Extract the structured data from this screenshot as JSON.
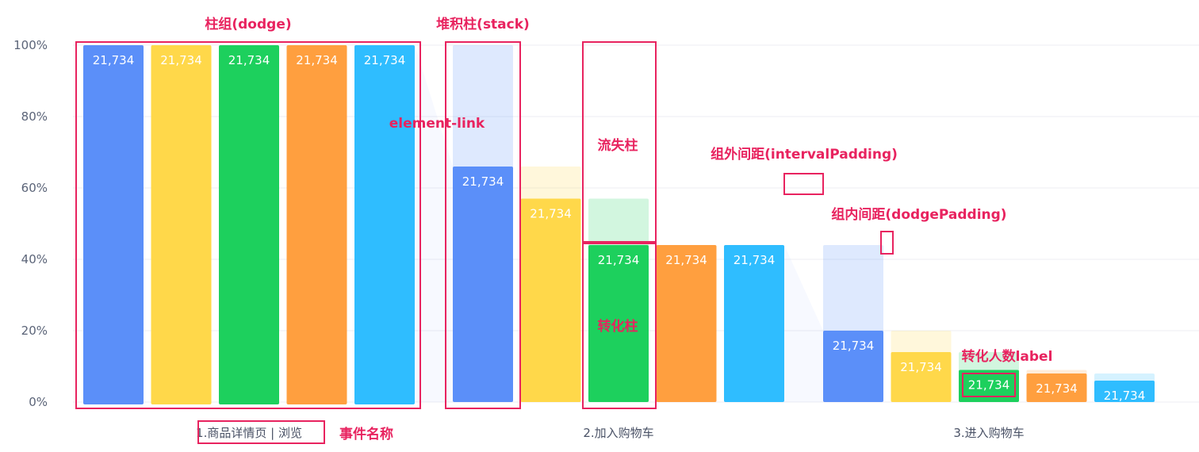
{
  "chart_data": {
    "type": "bar",
    "categories": [
      "1.商品详情页 | 浏览",
      "2.加入购物车",
      "3.进入购物车"
    ],
    "y_ticks": [
      "0%",
      "20%",
      "40%",
      "60%",
      "80%",
      "100%"
    ],
    "ylim": [
      0,
      100
    ],
    "grid": true,
    "series": [
      {
        "color": "#5b8ff9",
        "values": [
          100,
          66,
          20
        ],
        "labels": [
          "21,734",
          "21,734",
          "21,734"
        ]
      },
      {
        "color": "#ffd84a",
        "values": [
          100,
          57,
          14
        ],
        "labels": [
          "21,734",
          "21,734",
          "21,734"
        ]
      },
      {
        "color": "#1dd05d",
        "values": [
          100,
          44,
          9
        ],
        "labels": [
          "21,734",
          "21,734",
          "21,734"
        ]
      },
      {
        "color": "#ff9f3f",
        "values": [
          100,
          44,
          8
        ],
        "labels": [
          "21,734",
          "21,734",
          "21,734"
        ]
      },
      {
        "color": "#2fbdff",
        "values": [
          100,
          44,
          6
        ],
        "labels": [
          "21,734",
          "21,734",
          "21,734"
        ]
      }
    ],
    "annotations": {
      "dodge": "柱组(dodge)",
      "stack": "堆积柱(stack)",
      "element_link": "element-link",
      "loss_bar": "流失柱",
      "conversion_bar": "转化柱",
      "interval_padding": "组外间距(intervalPadding)",
      "dodge_padding": "组内间距(dodgePadding)",
      "conversion_label": "转化人数label",
      "event_name": "事件名称"
    },
    "annotation_color": "#e8235f"
  }
}
